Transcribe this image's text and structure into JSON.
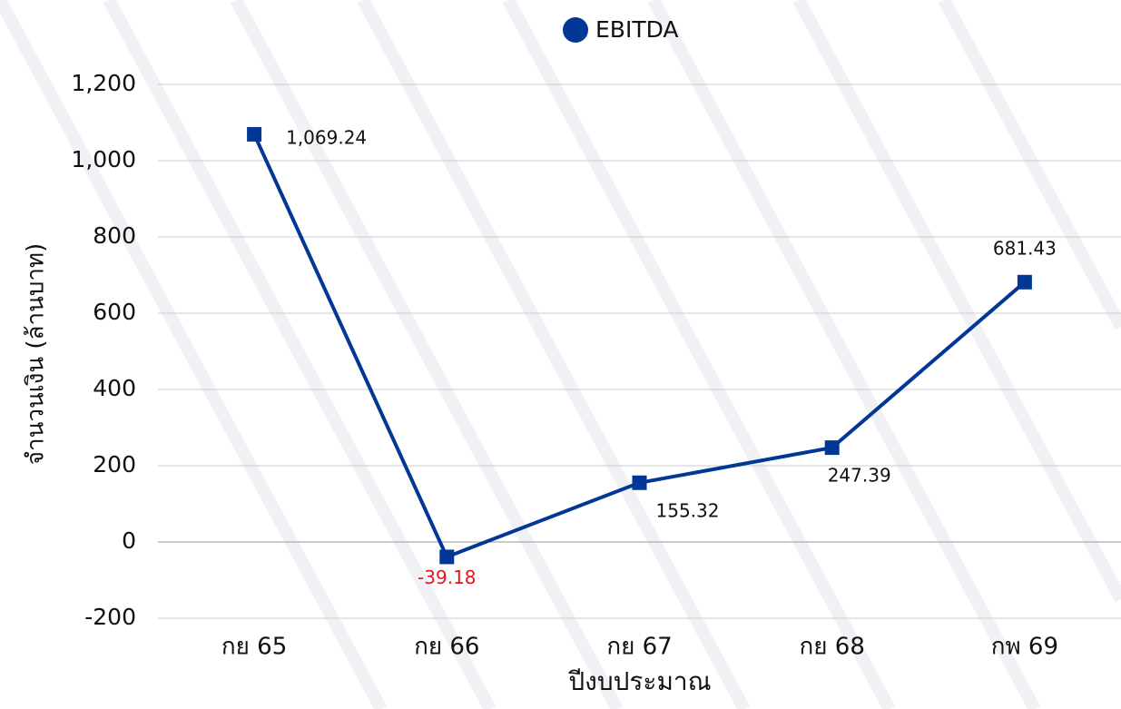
{
  "chart_data": {
    "type": "line",
    "legend_position": "top",
    "y_label": "จำนวนเงิน (ล้านบาท)",
    "x_label": "ปีงบประมาณ",
    "categories": [
      "กย 65",
      "กย 66",
      "กย 67",
      "กย 68",
      "กพ 69"
    ],
    "series": [
      {
        "name": "EBITDA",
        "color": "#023796",
        "values": [
          1069.24,
          -39.18,
          155.32,
          247.39,
          681.43
        ],
        "value_labels": [
          "1,069.24",
          "-39.18",
          "155.32",
          "247.39",
          "681.43"
        ]
      }
    ],
    "negative_label_color": "#e8141c",
    "ylim": [
      -200,
      1200
    ],
    "yticks": [
      -200,
      0,
      200,
      400,
      600,
      800,
      {
        "value": 1000,
        "label": "1,000"
      },
      {
        "value": 1200,
        "label": "1,200"
      }
    ],
    "grid": true
  }
}
